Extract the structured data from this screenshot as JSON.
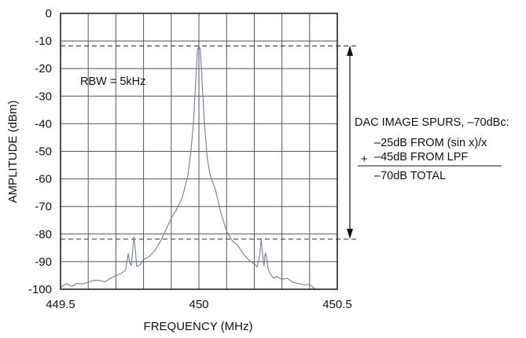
{
  "chart_data": {
    "type": "line",
    "xlabel": "FREQUENCY (MHz)",
    "ylabel": "AMPLITUDE (dBm)",
    "xlim": [
      449.5,
      450.5
    ],
    "ylim": [
      -100,
      0
    ],
    "grid": true,
    "x_ticks": [
      449.5,
      449.6,
      449.7,
      449.8,
      449.9,
      450.0,
      450.1,
      450.2,
      450.3,
      450.4,
      450.5
    ],
    "x_tick_labels": [
      "449.5",
      "450",
      "450.5"
    ],
    "y_ticks": [
      0,
      -10,
      -20,
      -30,
      -40,
      -50,
      -60,
      -70,
      -80,
      -90,
      -100
    ],
    "y_tick_labels": [
      "0",
      "-10",
      "-20",
      "-30",
      "-40",
      "-50",
      "-60",
      "-70",
      "-80",
      "-90",
      "-100"
    ],
    "reference_lines": [
      -11.8,
      -81.8
    ],
    "line_color": "#6c7fa6",
    "series": [
      {
        "x": [
          449.5,
          449.52,
          449.54,
          449.56,
          449.58,
          449.6,
          449.62,
          449.64,
          449.66,
          449.68,
          449.7,
          449.72,
          449.735,
          449.745,
          449.75,
          449.755,
          449.76,
          449.765,
          449.77,
          449.775,
          449.78,
          449.79,
          449.8,
          449.82,
          449.84,
          449.86,
          449.88,
          449.9,
          449.92,
          449.94,
          449.96,
          449.97,
          449.98,
          449.99,
          449.995,
          450.0,
          450.005,
          450.01,
          450.02,
          450.03,
          450.04,
          450.06,
          450.08,
          450.1,
          450.12,
          450.14,
          450.16,
          450.18,
          450.2,
          450.21,
          450.22,
          450.225,
          450.23,
          450.235,
          450.24,
          450.245,
          450.25,
          450.255,
          450.26,
          450.27,
          450.28,
          450.3,
          450.32,
          450.34,
          450.36,
          450.38,
          450.4,
          450.42,
          450.44,
          450.46,
          450.48,
          450.5
        ],
        "values": [
          -99.5,
          -99,
          -99,
          -98.5,
          -98.5,
          -98,
          -97.5,
          -97,
          -96.5,
          -95.5,
          -95,
          -94,
          -92,
          -87,
          -90,
          -92,
          -88,
          -81.5,
          -86,
          -92,
          -92.5,
          -91.5,
          -90,
          -87.5,
          -85,
          -82,
          -78,
          -73,
          -70,
          -66,
          -60,
          -52,
          -40,
          -22,
          -13,
          -12,
          -13,
          -22,
          -40,
          -52,
          -58,
          -64,
          -72,
          -78,
          -82,
          -85,
          -87.5,
          -90,
          -91,
          -92,
          -88,
          -82,
          -87,
          -91,
          -86,
          -88.5,
          -92,
          -93,
          -94,
          -95,
          -95.5,
          -96.5,
          -97,
          -97.5,
          -98,
          -98.5,
          -99,
          -99,
          -99.5,
          -99.5,
          -99.5,
          -99.5
        ]
      }
    ]
  },
  "annotations": {
    "rbw": "RBW = 5kHz",
    "spurs_title": "DAC IMAGE SPURS, –70dBc:",
    "line1": "–25dB FROM (sin x)/x",
    "plus": "+",
    "line2": "–45dB FROM LPF",
    "total": "–70dB TOTAL"
  }
}
